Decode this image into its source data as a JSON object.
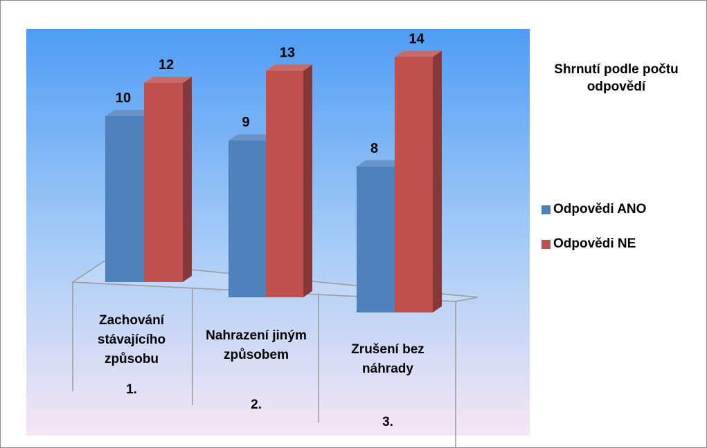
{
  "chart_data": {
    "type": "bar3d",
    "legend_title": "Shrnutí podle počtu odpovědí",
    "categories": [
      "Zachování stávajícího způsobu",
      "Nahrazení jiným způsobem",
      "Zrušení bez náhrady"
    ],
    "category_numbers": [
      "1.",
      "2.",
      "3."
    ],
    "series": [
      {
        "name": "Odpovědi ANO",
        "color": "#4f81bd",
        "values": [
          10,
          9,
          8
        ]
      },
      {
        "name": "Odpovědi NE",
        "color": "#c0504d",
        "values": [
          12,
          13,
          14
        ]
      }
    ],
    "legend": "right"
  }
}
